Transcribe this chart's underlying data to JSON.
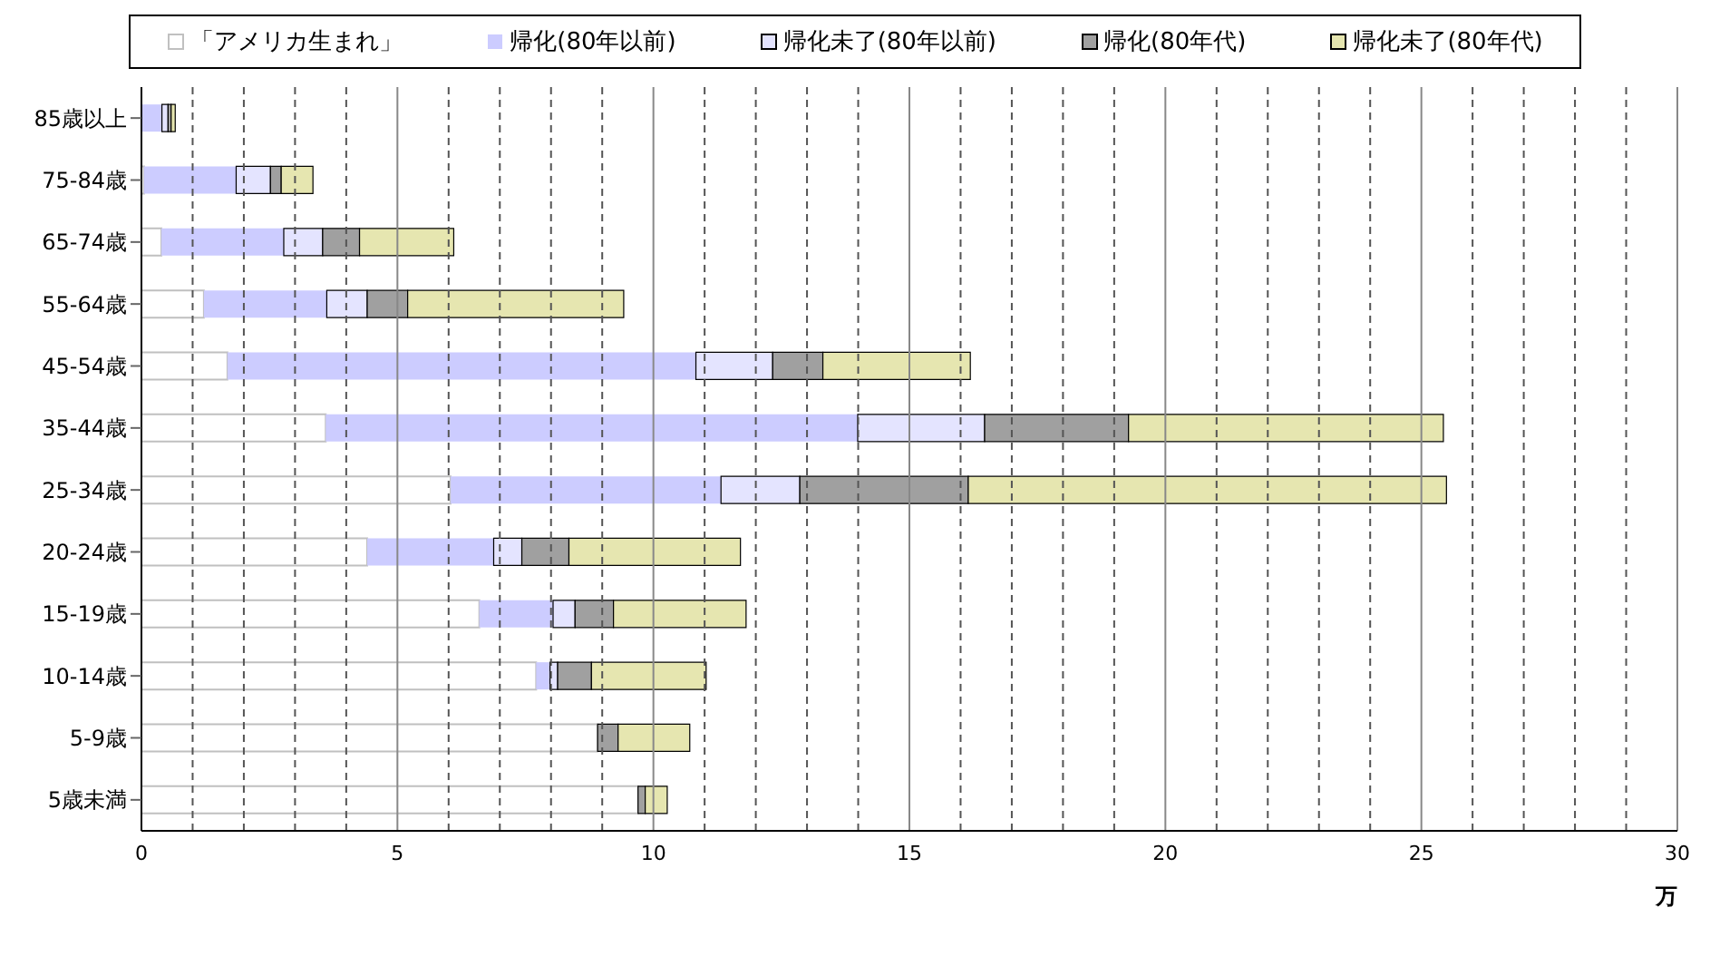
{
  "chart_data": {
    "type": "bar",
    "orientation": "horizontal",
    "stacked": true,
    "categories": [
      "85歳以上",
      "75-84歳",
      "65-74歳",
      "55-64歳",
      "45-54歳",
      "35-44歳",
      "25-34歳",
      "20-24歳",
      "15-19歳",
      "10-14歳",
      "5-9歳",
      "5歳未満"
    ],
    "series": [
      {
        "name": "「アメリカ生まれ」",
        "color": "#ffffff",
        "values": [
          0,
          0.05,
          0.39,
          1.22,
          1.68,
          3.6,
          6.04,
          4.41,
          6.6,
          7.71,
          8.91,
          9.7
        ]
      },
      {
        "name": "帰化(80年以前)",
        "color": "#ccccff",
        "values": [
          0.4,
          1.8,
          2.39,
          2.4,
          9.15,
          10.39,
          5.28,
          2.47,
          1.44,
          0.27,
          0,
          0
        ]
      },
      {
        "name": "帰化未了(80年以前)",
        "color": "#e4e4ff",
        "values": [
          0.12,
          0.67,
          0.76,
          0.79,
          1.5,
          2.48,
          1.54,
          0.55,
          0.43,
          0.15,
          0,
          0
        ]
      },
      {
        "name": "帰化(80年代)",
        "color": "#a0a0a0",
        "values": [
          0.06,
          0.21,
          0.72,
          0.79,
          0.98,
          2.81,
          3.29,
          0.92,
          0.75,
          0.66,
          0.4,
          0.14
        ]
      },
      {
        "name": "帰化未了(80年代)",
        "color": "#e6e6b0",
        "values": [
          0.08,
          0.62,
          1.84,
          4.22,
          2.88,
          6.15,
          9.34,
          3.35,
          2.59,
          2.24,
          1.4,
          0.43
        ]
      }
    ],
    "xlim": [
      0,
      30
    ],
    "xticks": [
      0,
      {
        "value": 1,
        "label": null
      },
      {
        "value": 2,
        "label": null
      },
      {
        "value": 3,
        "label": null
      },
      {
        "value": 4,
        "label": null
      },
      5,
      {
        "value": 6,
        "label": null
      },
      {
        "value": 7,
        "label": null
      },
      {
        "value": 8,
        "label": null
      },
      {
        "value": 9,
        "label": null
      },
      10,
      {
        "value": 11,
        "label": null
      },
      {
        "value": 12,
        "label": null
      },
      {
        "value": 13,
        "label": null
      },
      {
        "value": 14,
        "label": null
      },
      15,
      {
        "value": 16,
        "label": null
      },
      {
        "value": 17,
        "label": null
      },
      {
        "value": 18,
        "label": null
      },
      {
        "value": 19,
        "label": null
      },
      20,
      {
        "value": 21,
        "label": null
      },
      {
        "value": 22,
        "label": null
      },
      {
        "value": 23,
        "label": null
      },
      {
        "value": 24,
        "label": null
      },
      25,
      {
        "value": 26,
        "label": null
      },
      {
        "value": 27,
        "label": null
      },
      {
        "value": 28,
        "label": null
      },
      {
        "value": 29,
        "label": null
      },
      30
    ],
    "xlabel": "万",
    "grid": "x",
    "legend": "top"
  }
}
